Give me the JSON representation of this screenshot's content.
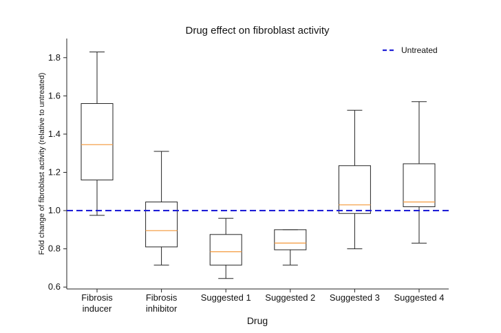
{
  "chart_data": {
    "type": "box",
    "title": "Drug effect on fibroblast activity",
    "xlabel": "Drug",
    "ylabel": "Fold change of fibroblast activity (relative to untreated)",
    "ylim": [
      0.59,
      1.9
    ],
    "yticks": [
      0.6,
      0.8,
      1.0,
      1.2,
      1.4,
      1.6,
      1.8
    ],
    "ytick_labels": [
      "0.6",
      "0.8",
      "1.0",
      "1.2",
      "1.4",
      "1.6",
      "1.8"
    ],
    "grid": false,
    "legend_position": "top-right",
    "reference_line": {
      "name": "Untreated",
      "y": 1.0,
      "style": "dashed",
      "color": "#1f1fd6"
    },
    "box_color": "#222222",
    "median_color": "#f5a04a",
    "categories": [
      {
        "label_lines": [
          "Fibrosis",
          "inducer"
        ],
        "min": 0.975,
        "q1": 1.16,
        "median": 1.345,
        "q3": 1.56,
        "max": 1.83
      },
      {
        "label_lines": [
          "Fibrosis",
          "inhibitor"
        ],
        "min": 0.715,
        "q1": 0.81,
        "median": 0.895,
        "q3": 1.045,
        "max": 1.31
      },
      {
        "label_lines": [
          "Suggested 1"
        ],
        "min": 0.645,
        "q1": 0.715,
        "median": 0.785,
        "q3": 0.875,
        "max": 0.96
      },
      {
        "label_lines": [
          "Suggested 2"
        ],
        "min": 0.715,
        "q1": 0.795,
        "median": 0.83,
        "q3": 0.9,
        "max": 0.9
      },
      {
        "label_lines": [
          "Suggested 3"
        ],
        "min": 0.8,
        "q1": 0.985,
        "median": 1.03,
        "q3": 1.235,
        "max": 1.525
      },
      {
        "label_lines": [
          "Suggested 4"
        ],
        "min": 0.83,
        "q1": 1.02,
        "median": 1.045,
        "q3": 1.245,
        "max": 1.57
      }
    ]
  }
}
